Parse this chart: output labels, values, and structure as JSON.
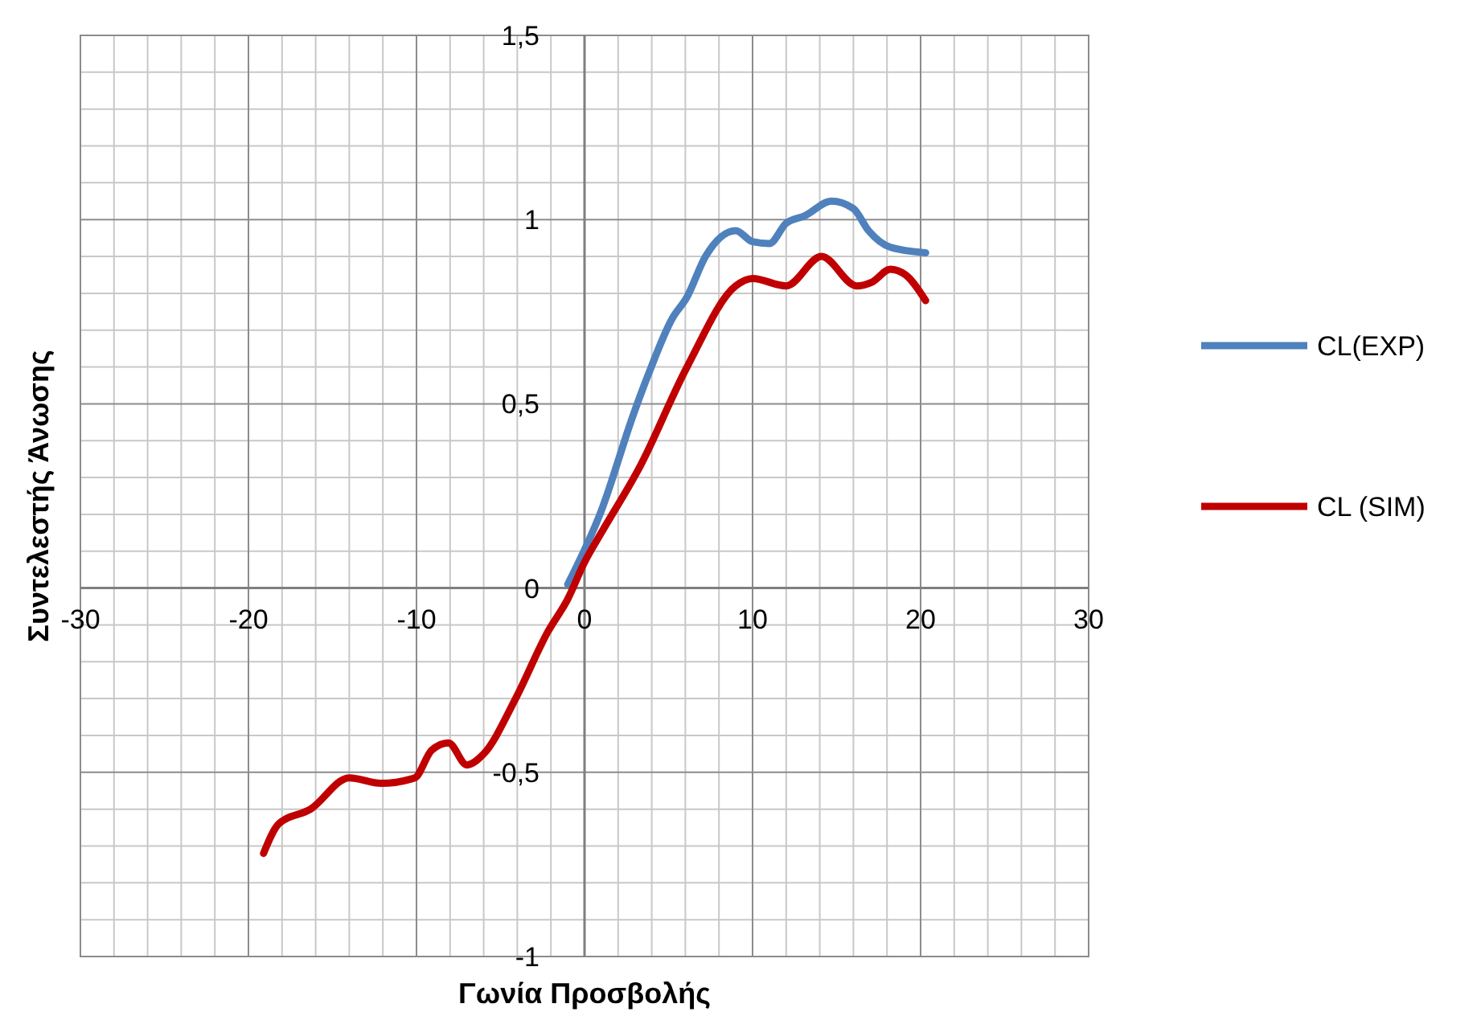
{
  "chart_data": {
    "type": "line",
    "xlabel": "Γωνία Προσβολής",
    "ylabel": "Συντελεστής Άνωσης",
    "xlim": [
      -30,
      30
    ],
    "ylim": [
      -1,
      1.5
    ],
    "xticks": [
      -30,
      -20,
      -10,
      0,
      10,
      20,
      30
    ],
    "yticks": [
      {
        "value": -1,
        "label": "-1"
      },
      {
        "value": -0.5,
        "label": "-0,5"
      },
      {
        "value": 0,
        "label": "0"
      },
      {
        "value": 0.5,
        "label": "0,5"
      },
      {
        "value": 1,
        "label": "1"
      },
      {
        "value": 1.5,
        "label": "1,5"
      }
    ],
    "grid": true,
    "legend": "right",
    "marker": "none",
    "line_style": "solid",
    "series": [
      {
        "name": "CL(EXP)",
        "color": "#4f81bd",
        "x": [
          -1,
          1,
          2.9,
          3.8,
          5.2,
          6.1,
          7.2,
          9,
          10,
          11,
          12,
          13.1,
          14.7,
          16,
          16.9,
          18.2,
          20.3
        ],
        "values": [
          0.01,
          0.21,
          0.47,
          0.58,
          0.73,
          0.79,
          0.9,
          0.97,
          0.94,
          0.935,
          0.99,
          1.01,
          1.05,
          1.03,
          0.97,
          0.925,
          0.91
        ]
      },
      {
        "name": "CL (SIM)",
        "color": "#c00000",
        "x": [
          -19.1,
          -18.2,
          -16.3,
          -14,
          -12.1,
          -10.1,
          -9.1,
          -8.1,
          -7,
          -6,
          -4.1,
          -2.2,
          -1,
          0,
          1,
          3.3,
          6.1,
          9,
          10,
          12,
          14.1,
          16.2,
          17.1,
          18.2,
          19.1,
          20.3
        ],
        "values": [
          -0.72,
          -0.64,
          -0.6,
          -0.515,
          -0.53,
          -0.515,
          -0.44,
          -0.42,
          -0.48,
          -0.45,
          -0.3,
          -0.12,
          -0.03,
          0.07,
          0.15,
          0.33,
          0.6,
          0.82,
          0.84,
          0.82,
          0.9,
          0.82,
          0.83,
          0.865,
          0.85,
          0.78
        ]
      }
    ]
  }
}
